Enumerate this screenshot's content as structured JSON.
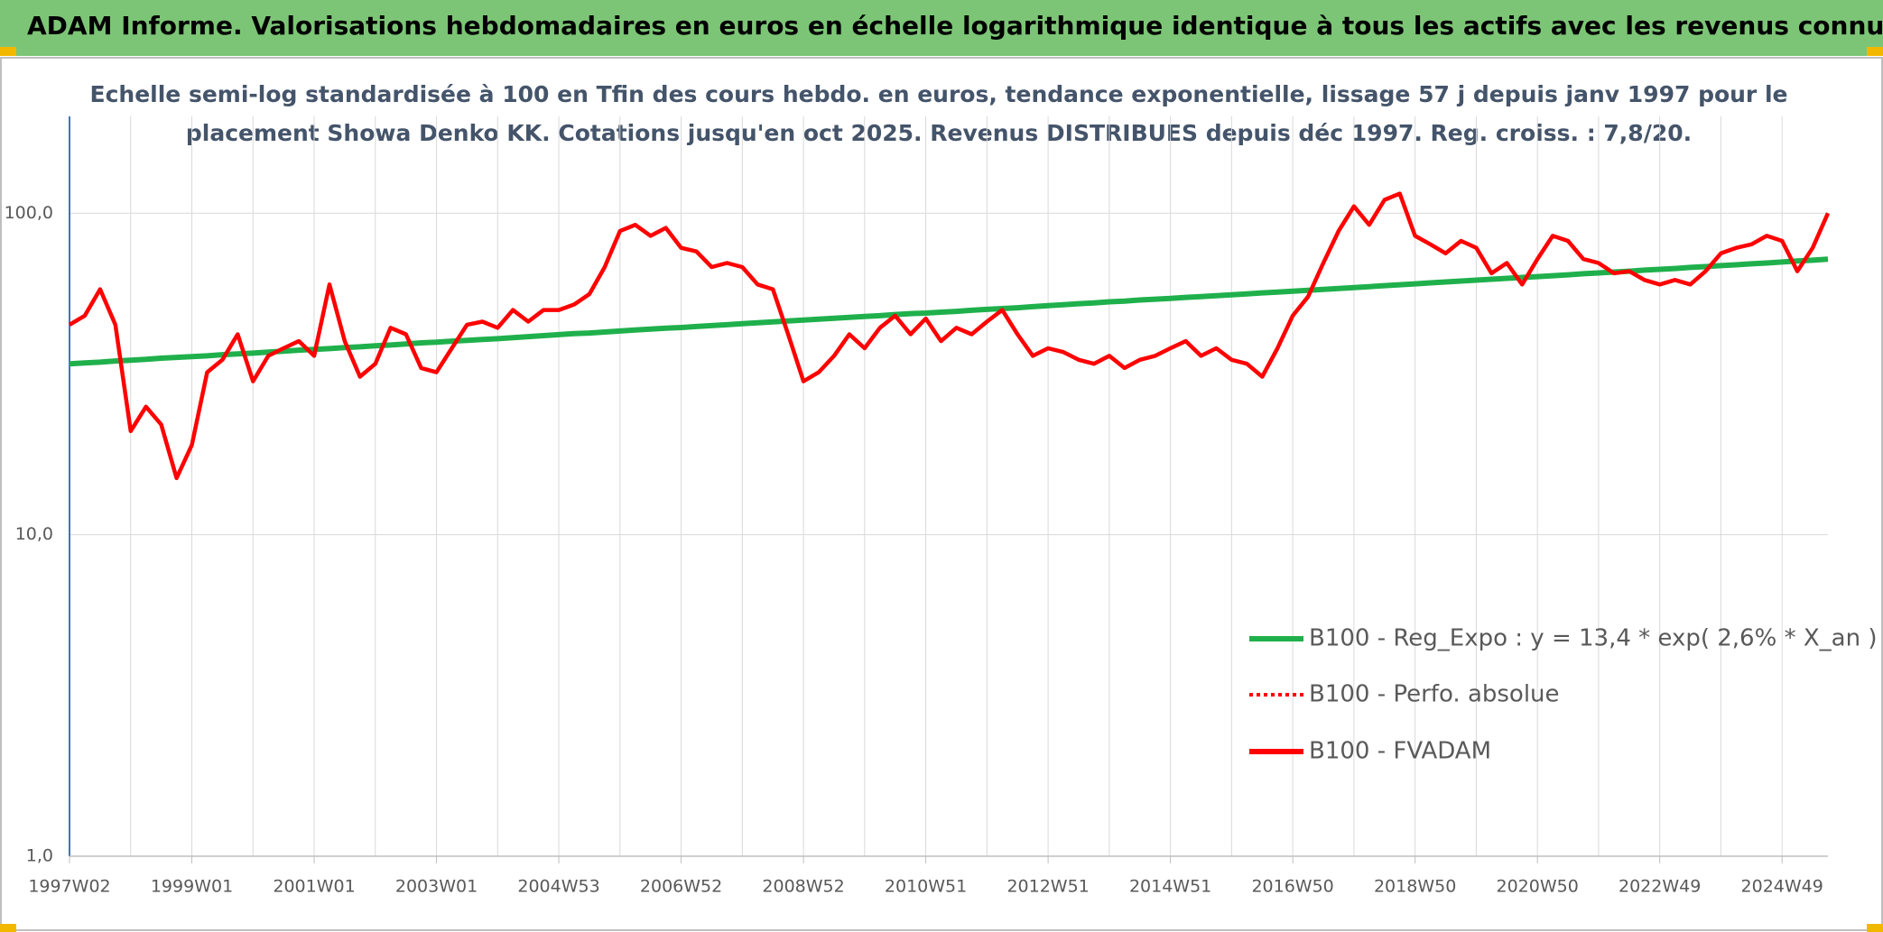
{
  "chart_data": {
    "type": "line",
    "title": "ADAM Informe. Valorisations hebdomadaires en euros en échelle logarithmique identique à tous les actifs avec les revenus connus distribués",
    "subtitle": [
      "Echelle semi-log standardisée à 100 en Tfin des cours hebdo. en euros, tendance exponentielle, lissage 57 j depuis janv 1997 pour le",
      "placement Showa Denko KK. Cotations jusqu'en oct 2025. Revenus DISTRIBUES depuis déc 1997. Reg. croiss. : 7,8/20."
    ],
    "log_scale": true,
    "grid": true,
    "legend": "right",
    "ylim": [
      1,
      200
    ],
    "yticks": [
      {
        "value": 1,
        "label": "1,0"
      },
      {
        "value": 10,
        "label": "10,0"
      },
      {
        "value": 100,
        "label": "100,0"
      }
    ],
    "categories": [
      "1997W02",
      null,
      null,
      null,
      null,
      null,
      null,
      null,
      "1999W01",
      null,
      null,
      null,
      null,
      null,
      null,
      null,
      "2001W01",
      null,
      null,
      null,
      null,
      null,
      null,
      null,
      "2003W01",
      null,
      null,
      null,
      null,
      null,
      null,
      null,
      "2004W53",
      null,
      null,
      null,
      null,
      null,
      null,
      null,
      "2006W52",
      null,
      null,
      null,
      null,
      null,
      null,
      null,
      "2008W52",
      null,
      null,
      null,
      null,
      null,
      null,
      null,
      "2010W51",
      null,
      null,
      null,
      null,
      null,
      null,
      null,
      "2012W51",
      null,
      null,
      null,
      null,
      null,
      null,
      null,
      "2014W51",
      null,
      null,
      null,
      null,
      null,
      null,
      null,
      "2016W50",
      null,
      null,
      null,
      null,
      null,
      null,
      null,
      "2018W50",
      null,
      null,
      null,
      null,
      null,
      null,
      null,
      "2020W50",
      null,
      null,
      null,
      null,
      null,
      null,
      null,
      "2022W49",
      null,
      null,
      null,
      null,
      null,
      null,
      null,
      "2024W49",
      null,
      null,
      null
    ],
    "series": [
      {
        "name": "B100 - Reg_Expo : y = 13,4 * exp( 2,6% *  X_an )",
        "color": "#1fb04c",
        "style": "solid",
        "values": [
          34.0,
          34.2,
          34.4,
          34.7,
          34.9,
          35.1,
          35.4,
          35.6,
          35.8,
          36.0,
          36.3,
          36.5,
          36.7,
          37.0,
          37.2,
          37.5,
          37.7,
          37.9,
          38.2,
          38.4,
          38.7,
          38.9,
          39.2,
          39.5,
          39.7,
          40.0,
          40.2,
          40.5,
          40.7,
          41.0,
          41.3,
          41.6,
          41.9,
          42.2,
          42.4,
          42.7,
          43.0,
          43.3,
          43.6,
          43.9,
          44.1,
          44.4,
          44.7,
          45.0,
          45.3,
          45.6,
          45.9,
          46.2,
          46.5,
          46.8,
          47.1,
          47.4,
          47.7,
          48.0,
          48.4,
          48.7,
          48.9,
          49.2,
          49.5,
          49.9,
          50.2,
          50.5,
          50.8,
          51.2,
          51.6,
          51.9,
          52.3,
          52.6,
          53.0,
          53.3,
          53.7,
          54.0,
          54.3,
          54.7,
          55.0,
          55.4,
          55.7,
          56.1,
          56.5,
          56.8,
          57.2,
          57.6,
          57.9,
          58.3,
          58.7,
          59.1,
          59.5,
          59.9,
          60.3,
          60.7,
          61.1,
          61.5,
          61.9,
          62.3,
          62.7,
          63.1,
          63.5,
          63.9,
          64.3,
          64.8,
          65.2,
          65.6,
          66.0,
          66.5,
          66.9,
          67.3,
          67.8,
          68.2,
          68.7,
          69.1,
          69.6,
          70.0,
          70.5,
          71.0,
          71.4,
          71.9
        ]
      },
      {
        "name": "B100 - Perfo. absolue",
        "color": "#ff0000",
        "style": "dotted",
        "values": [
          45,
          48,
          58,
          45,
          21,
          25,
          22,
          15,
          19,
          32,
          35,
          42,
          30,
          36,
          38,
          40,
          36,
          60,
          40,
          31,
          34,
          44,
          42,
          33,
          32,
          38,
          45,
          46,
          44,
          50,
          46,
          50,
          50,
          52,
          56,
          68,
          88,
          92,
          85,
          90,
          78,
          76,
          68,
          70,
          68,
          60,
          58,
          42,
          30,
          32,
          36,
          42,
          38,
          44,
          48,
          42,
          47,
          40,
          44,
          42,
          46,
          50,
          42,
          36,
          38,
          37,
          35,
          34,
          36,
          33,
          35,
          36,
          38,
          40,
          36,
          38,
          35,
          34,
          31,
          38,
          48,
          55,
          70,
          88,
          105,
          92,
          110,
          115,
          85,
          80,
          75,
          82,
          78,
          65,
          70,
          60,
          72,
          85,
          82,
          72,
          70,
          65,
          66,
          62,
          60,
          62,
          60,
          66,
          75,
          78,
          80,
          85,
          82,
          66,
          78,
          100
        ]
      },
      {
        "name": "B100 - FVADAM",
        "color": "#ff0000",
        "style": "solid",
        "values": [
          45,
          48,
          58,
          45,
          21,
          25,
          22,
          15,
          19,
          32,
          35,
          42,
          30,
          36,
          38,
          40,
          36,
          60,
          40,
          31,
          34,
          44,
          42,
          33,
          32,
          38,
          45,
          46,
          44,
          50,
          46,
          50,
          50,
          52,
          56,
          68,
          88,
          92,
          85,
          90,
          78,
          76,
          68,
          70,
          68,
          60,
          58,
          42,
          30,
          32,
          36,
          42,
          38,
          44,
          48,
          42,
          47,
          40,
          44,
          42,
          46,
          50,
          42,
          36,
          38,
          37,
          35,
          34,
          36,
          33,
          35,
          36,
          38,
          40,
          36,
          38,
          35,
          34,
          31,
          38,
          48,
          55,
          70,
          88,
          105,
          92,
          110,
          115,
          85,
          80,
          75,
          82,
          78,
          65,
          70,
          60,
          72,
          85,
          82,
          72,
          70,
          65,
          66,
          62,
          60,
          62,
          60,
          66,
          75,
          78,
          80,
          85,
          82,
          66,
          78,
          100
        ]
      }
    ]
  }
}
